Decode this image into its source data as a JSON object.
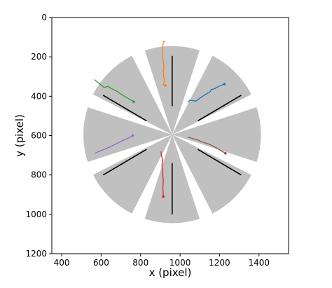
{
  "chart_data": {
    "type": "scatter",
    "title": "",
    "xlabel": "x (pixel)",
    "ylabel": "y (pixel)",
    "xlim": [
      350,
      1550
    ],
    "ylim": [
      1200,
      0
    ],
    "y_inverted": true,
    "xticks": [
      400,
      600,
      800,
      1000,
      1200,
      1400
    ],
    "yticks": [
      0,
      200,
      400,
      600,
      800,
      1000,
      1200
    ],
    "grid": false,
    "arena": {
      "center": [
        960,
        595
      ],
      "outer_radius": 450,
      "sector_count": 8,
      "sector_half_width_deg": 18,
      "sector_color": "#c0c0c0"
    },
    "sector_bars": [
      {
        "x1": 960,
        "y1": 195,
        "x2": 960,
        "y2": 450
      },
      {
        "x1": 1310,
        "y1": 395,
        "x2": 1090,
        "y2": 525
      },
      {
        "x1": 1310,
        "y1": 800,
        "x2": 1090,
        "y2": 670
      },
      {
        "x1": 960,
        "y1": 1000,
        "x2": 960,
        "y2": 740
      },
      {
        "x1": 610,
        "y1": 800,
        "x2": 830,
        "y2": 670
      },
      {
        "x1": 610,
        "y1": 395,
        "x2": 830,
        "y2": 525
      }
    ],
    "series": [
      {
        "color": "#ff7f0e",
        "points": [
          [
            925,
            120
          ],
          [
            915,
            125
          ],
          [
            912,
            150
          ],
          [
            910,
            175
          ],
          [
            912,
            200
          ],
          [
            915,
            225
          ],
          [
            918,
            250
          ],
          [
            915,
            275
          ],
          [
            917,
            300
          ],
          [
            922,
            320
          ],
          [
            915,
            340
          ],
          [
            925,
            345
          ]
        ]
      },
      {
        "color": "#1f77b4",
        "points": [
          [
            1040,
            430
          ],
          [
            1050,
            420
          ],
          [
            1080,
            425
          ],
          [
            1100,
            410
          ],
          [
            1130,
            390
          ],
          [
            1150,
            380
          ],
          [
            1160,
            365
          ],
          [
            1175,
            362
          ],
          [
            1195,
            350
          ],
          [
            1225,
            338
          ]
        ]
      },
      {
        "color": "#2ca02c",
        "points": [
          [
            565,
            315
          ],
          [
            590,
            335
          ],
          [
            615,
            355
          ],
          [
            635,
            350
          ],
          [
            650,
            360
          ],
          [
            680,
            375
          ],
          [
            710,
            395
          ],
          [
            735,
            410
          ],
          [
            765,
            428
          ]
        ]
      },
      {
        "color": "#9467bd",
        "points": [
          [
            568,
            690
          ],
          [
            590,
            680
          ],
          [
            620,
            668
          ],
          [
            650,
            655
          ],
          [
            680,
            640
          ],
          [
            710,
            625
          ],
          [
            740,
            612
          ],
          [
            760,
            600
          ]
        ]
      },
      {
        "color": "#d62728",
        "points": [
          [
            903,
            680
          ],
          [
            905,
            700
          ],
          [
            912,
            720
          ],
          [
            908,
            750
          ],
          [
            912,
            790
          ],
          [
            915,
            830
          ],
          [
            913,
            870
          ],
          [
            915,
            910
          ]
        ]
      },
      {
        "color": "#8c564b",
        "points": [
          [
            1040,
            608
          ],
          [
            1065,
            615
          ],
          [
            1090,
            622
          ],
          [
            1120,
            635
          ],
          [
            1150,
            645
          ],
          [
            1180,
            660
          ],
          [
            1205,
            675
          ],
          [
            1230,
            690
          ]
        ]
      }
    ]
  }
}
